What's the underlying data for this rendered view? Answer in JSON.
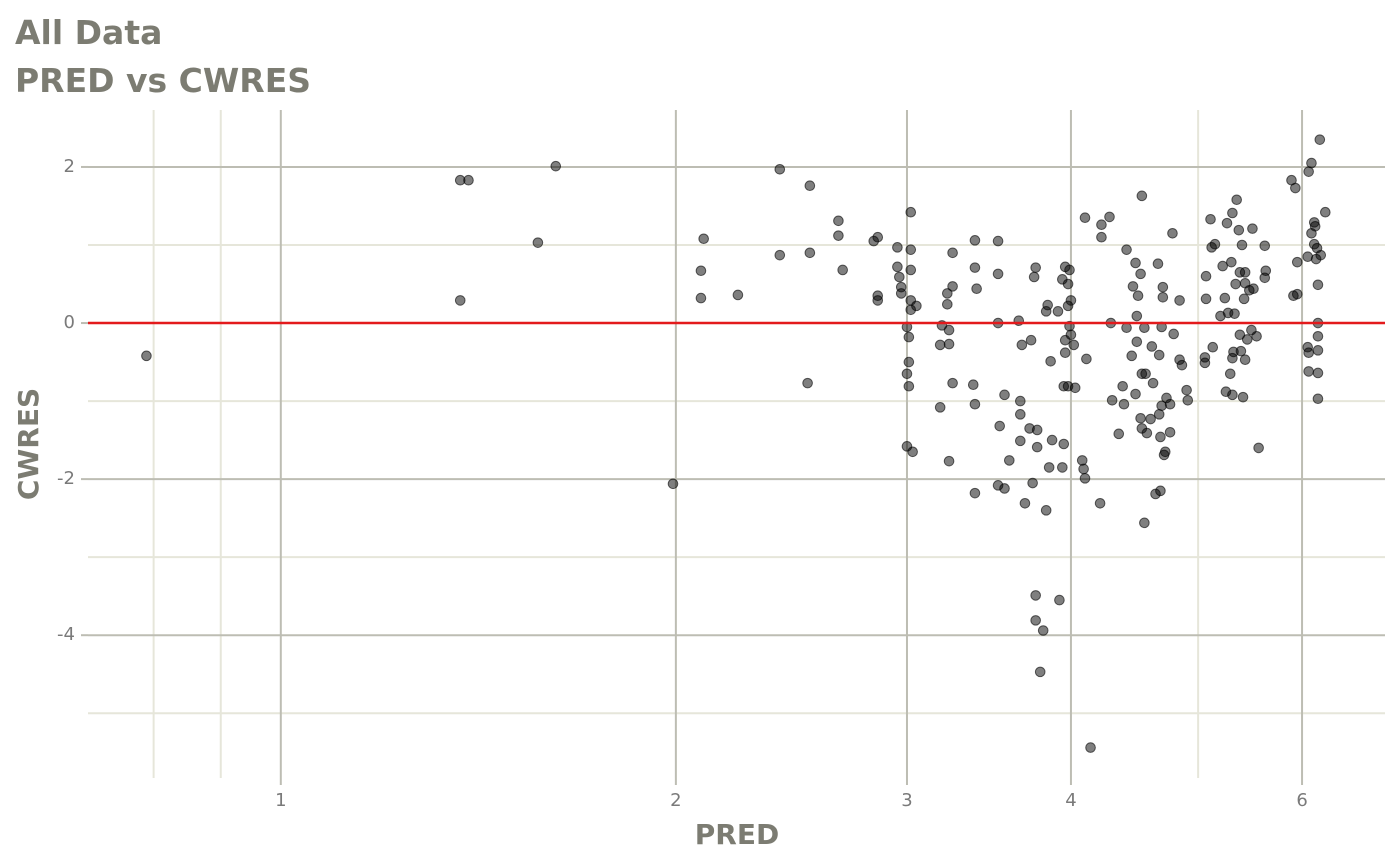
{
  "chart_data": {
    "type": "scatter",
    "title": "All Data",
    "subtitle": "PRED vs CWRES",
    "x_label": "PRED",
    "y_label": "CWRES",
    "x_scale": "log",
    "xlim": [
      0.713,
      6.94
    ],
    "ylim": [
      -5.83,
      2.73
    ],
    "xticks": [
      1,
      2,
      3,
      4,
      6
    ],
    "x_minor_ticks": [
      0.8,
      0.9,
      5
    ],
    "yticks": [
      -4,
      -2,
      0,
      2
    ],
    "y_minor_ticks": [
      -5,
      -3,
      -1,
      1
    ],
    "grid": true,
    "color": "#000000",
    "reference_line": {
      "value": 0,
      "color": "#e31a1c"
    },
    "x": [
      0.79,
      1.37,
      1.39,
      1.37,
      1.57,
      1.62,
      1.99,
      2.09,
      2.09,
      2.1,
      2.23,
      2.4,
      2.4,
      2.52,
      2.53,
      2.53,
      2.66,
      2.66,
      2.68,
      2.83,
      2.85,
      2.85,
      2.85,
      2.95,
      2.95,
      2.96,
      2.97,
      2.97,
      3.0,
      3.0,
      3.0,
      3.01,
      3.02,
      3.02,
      3.02,
      3.02,
      3.02,
      3.01,
      3.01,
      3.03,
      3.05,
      3.18,
      3.19,
      3.18,
      3.22,
      3.22,
      3.23,
      3.23,
      3.23,
      3.25,
      3.25,
      3.25,
      3.37,
      3.38,
      3.38,
      3.39,
      3.38,
      3.38,
      3.52,
      3.52,
      3.52,
      3.52,
      3.53,
      3.56,
      3.56,
      3.59,
      3.65,
      3.66,
      3.66,
      3.66,
      3.67,
      3.69,
      3.72,
      3.73,
      3.74,
      3.75,
      3.76,
      3.76,
      3.76,
      3.79,
      3.81,
      3.77,
      3.77,
      3.83,
      3.84,
      3.83,
      3.85,
      3.86,
      3.87,
      3.92,
      3.91,
      3.94,
      3.94,
      3.95,
      3.95,
      3.96,
      3.96,
      3.96,
      3.98,
      3.98,
      3.98,
      3.99,
      4.0,
      3.99,
      4.0,
      4.02,
      4.03,
      4.08,
      4.09,
      4.1,
      4.1,
      4.11,
      4.14,
      4.21,
      4.22,
      4.22,
      4.28,
      4.29,
      4.3,
      4.35,
      4.38,
      4.39,
      4.41,
      4.41,
      4.45,
      4.46,
      4.48,
      4.48,
      4.49,
      4.49,
      4.5,
      4.52,
      4.52,
      4.53,
      4.53,
      4.53,
      4.55,
      4.55,
      4.56,
      4.57,
      4.6,
      4.61,
      4.62,
      4.64,
      4.66,
      4.67,
      4.67,
      4.68,
      4.68,
      4.69,
      4.69,
      4.7,
      4.7,
      4.71,
      4.72,
      4.73,
      4.76,
      4.76,
      4.78,
      4.79,
      4.84,
      4.84,
      4.86,
      4.9,
      4.91,
      5.06,
      5.06,
      5.07,
      5.07,
      5.11,
      5.12,
      5.15,
      5.13,
      5.2,
      5.22,
      5.24,
      5.25,
      5.26,
      5.27,
      5.29,
      5.3,
      5.31,
      5.31,
      5.31,
      5.32,
      5.33,
      5.34,
      5.35,
      5.37,
      5.38,
      5.38,
      5.39,
      5.4,
      5.41,
      5.42,
      5.43,
      5.43,
      5.43,
      5.45,
      5.47,
      5.49,
      5.5,
      5.51,
      5.54,
      5.56,
      5.62,
      5.62,
      5.63,
      5.89,
      5.93,
      5.91,
      5.95,
      5.95,
      6.06,
      6.07,
      6.06,
      6.07,
      6.07,
      6.1,
      6.1,
      6.13,
      6.13,
      6.14,
      6.15,
      6.16,
      6.17,
      6.17,
      6.17,
      6.17,
      6.17,
      6.17,
      6.19,
      6.2,
      6.25
    ],
    "values": [
      -0.42,
      1.83,
      1.83,
      0.29,
      1.03,
      2.01,
      -2.06,
      0.67,
      0.32,
      1.08,
      0.36,
      1.97,
      0.87,
      -0.77,
      1.76,
      0.9,
      1.31,
      1.12,
      0.68,
      1.05,
      1.1,
      0.35,
      0.29,
      0.97,
      0.72,
      0.59,
      0.46,
      0.38,
      -1.58,
      -0.65,
      -0.05,
      -0.18,
      1.42,
      0.68,
      0.29,
      0.17,
      0.94,
      -0.5,
      -0.81,
      -1.65,
      0.22,
      -1.08,
      -0.03,
      -0.28,
      0.24,
      0.38,
      -0.09,
      -1.77,
      -0.27,
      0.47,
      0.9,
      -0.77,
      -0.79,
      1.06,
      0.71,
      0.44,
      -1.04,
      -2.18,
      1.05,
      0.63,
      0.0,
      -2.08,
      -1.32,
      -0.92,
      -2.12,
      -1.76,
      0.03,
      -1.0,
      -1.17,
      -1.51,
      -0.28,
      -2.31,
      -1.35,
      -0.22,
      -2.05,
      0.59,
      0.71,
      -3.49,
      -3.81,
      -4.47,
      -3.94,
      -1.59,
      -1.37,
      0.15,
      0.23,
      -2.4,
      -1.85,
      -0.49,
      -1.5,
      -3.55,
      0.15,
      0.56,
      -1.85,
      -1.55,
      -0.81,
      -0.38,
      -0.22,
      0.72,
      0.5,
      0.22,
      -0.81,
      0.68,
      0.29,
      -0.04,
      -0.15,
      -0.28,
      -0.83,
      -1.76,
      -1.87,
      1.35,
      -1.99,
      -0.46,
      -5.44,
      -2.31,
      1.26,
      1.1,
      1.36,
      0.0,
      -0.99,
      -1.42,
      -0.81,
      -1.04,
      0.94,
      -0.06,
      -0.42,
      0.47,
      0.77,
      -0.91,
      0.09,
      -0.24,
      0.35,
      0.63,
      -1.22,
      1.63,
      -0.65,
      -1.35,
      -0.06,
      -2.56,
      -0.65,
      -1.41,
      -1.23,
      -0.3,
      -0.77,
      -2.19,
      0.76,
      -0.41,
      -1.17,
      -2.15,
      -1.46,
      -1.06,
      -0.05,
      0.33,
      0.46,
      -1.69,
      -1.65,
      -0.96,
      -1.4,
      -1.04,
      1.15,
      -0.14,
      -0.47,
      0.29,
      -0.54,
      -0.86,
      -0.99,
      -0.44,
      -0.51,
      0.6,
      0.31,
      1.33,
      0.97,
      1.01,
      -0.31,
      0.09,
      0.73,
      0.32,
      -0.88,
      1.28,
      0.13,
      -0.65,
      0.78,
      -0.92,
      1.41,
      -0.45,
      -0.37,
      0.12,
      0.5,
      1.58,
      1.19,
      0.65,
      -0.15,
      -0.36,
      1.0,
      -0.95,
      0.31,
      0.51,
      -0.47,
      0.65,
      -0.21,
      0.42,
      -0.09,
      1.21,
      0.44,
      -0.17,
      -1.6,
      0.99,
      0.58,
      0.67,
      1.83,
      1.73,
      0.35,
      0.78,
      0.37,
      0.85,
      1.94,
      -0.31,
      -0.38,
      -0.62,
      2.05,
      1.15,
      1.01,
      1.29,
      1.24,
      0.82,
      0.96,
      0.49,
      0.0,
      -0.17,
      -0.35,
      -0.64,
      -0.97,
      2.35,
      0.87,
      1.42
    ]
  }
}
